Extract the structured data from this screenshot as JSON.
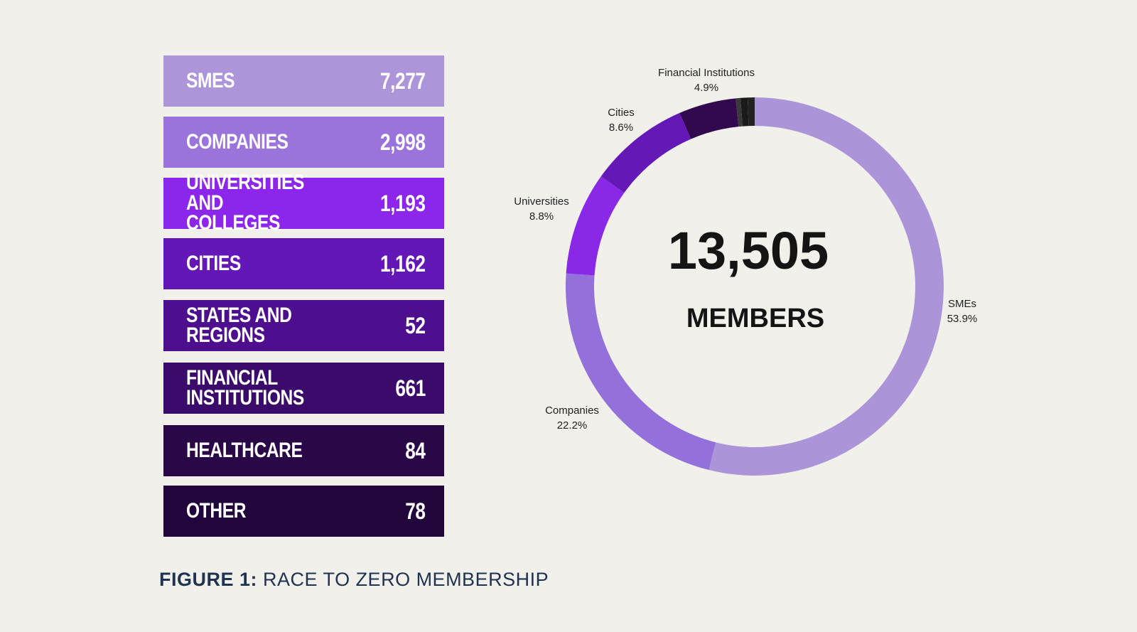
{
  "bar_list": [
    {
      "label": "SMES",
      "value": "7,277",
      "color": "#ad95d9"
    },
    {
      "label": "COMPANIES",
      "value": "2,998",
      "color": "#9a73db"
    },
    {
      "label": "UNIVERSITIES AND\nCOLLEGES",
      "value": "1,193",
      "color": "#8b26ea"
    },
    {
      "label": "CITIES",
      "value": "1,162",
      "color": "#6417b7"
    },
    {
      "label": "STATES AND REGIONS",
      "value": "52",
      "color": "#4e0f8e"
    },
    {
      "label": "FINANCIAL\nINSTITUTIONS",
      "value": "661",
      "color": "#3a0b6a"
    },
    {
      "label": "HEALTHCARE",
      "value": "84",
      "color": "#2a0848"
    },
    {
      "label": "OTHER",
      "value": "78",
      "color": "#22053a"
    }
  ],
  "chart_data": {
    "type": "pie",
    "variant": "donut",
    "center_value": "13,505",
    "center_label": "MEMBERS",
    "slices": [
      {
        "name": "SMEs",
        "percent": 53.9,
        "label": "53.9%",
        "color": "#ab95d8"
      },
      {
        "name": "Companies",
        "percent": 22.2,
        "label": "22.2%",
        "color": "#9470da"
      },
      {
        "name": "Universities",
        "percent": 8.8,
        "label": "8.8%",
        "color": "#8a28e8"
      },
      {
        "name": "Cities",
        "percent": 8.6,
        "label": "8.6%",
        "color": "#6418b5"
      },
      {
        "name": "Financial Institutions",
        "percent": 4.9,
        "label": "4.9%",
        "color": "#32084f"
      },
      {
        "name": "",
        "percent": 0.4,
        "label": "",
        "color": "#3a3a3a"
      },
      {
        "name": "",
        "percent": 0.6,
        "label": "",
        "color": "#1a1a1a"
      },
      {
        "name": "",
        "percent": 0.6,
        "label": "",
        "color": "#222222"
      }
    ]
  },
  "caption": {
    "bold": "FIGURE 1:",
    "text": "RACE TO ZERO MEMBERSHIP"
  }
}
